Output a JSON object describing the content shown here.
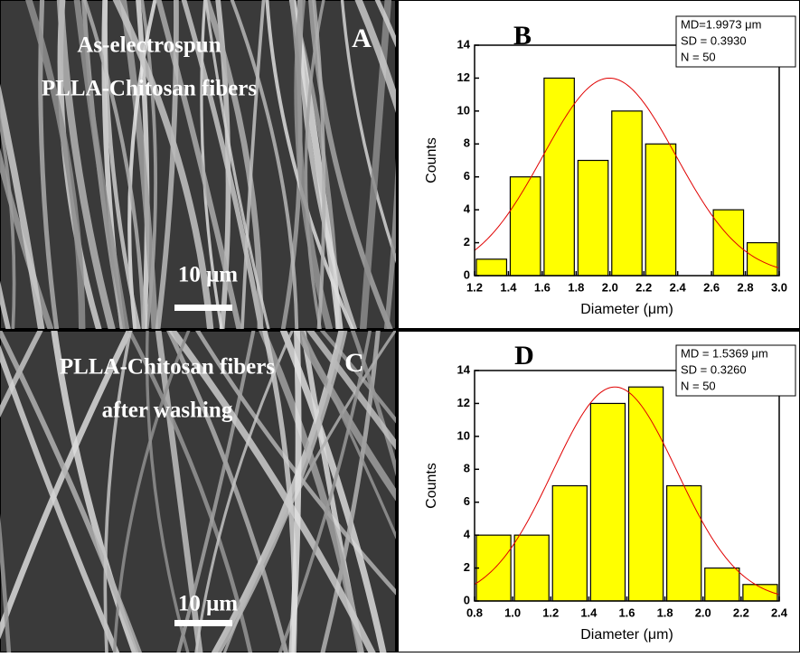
{
  "images": [
    {
      "label": "A",
      "caption": [
        "As-electrospun",
        "PLLA-Chitosan fibers"
      ],
      "scale_bar": "10 μm"
    },
    {
      "label": "C",
      "caption": [
        "PLLA-Chitosan fibers",
        "after washing"
      ],
      "scale_bar": "10 μm"
    }
  ],
  "chart_data": [
    {
      "type": "histogram",
      "title": "B",
      "x_label": "Diameter (μm)",
      "y_label": "Counts",
      "bins": [
        1.2,
        1.4,
        1.6,
        1.8,
        2.0,
        2.2,
        2.4,
        2.6,
        2.8,
        3.0
      ],
      "values": [
        1,
        6,
        12,
        7,
        10,
        8,
        0,
        4,
        2
      ],
      "color": "#ffff00",
      "curve_color": "#e00000",
      "fit": {
        "mean": 1.9973,
        "sd": 0.393,
        "peak": 12
      },
      "stats": [
        "MD=1.9973 μm",
        "SD = 0.3930",
        "N = 50"
      ],
      "xlim": [
        1.2,
        3.0
      ],
      "xticks": [
        1.2,
        1.4,
        1.6,
        1.8,
        {
          "value": 2,
          "label": "2.0"
        },
        2.2,
        2.4,
        2.6,
        2.8,
        {
          "value": 3,
          "label": "3.0"
        }
      ],
      "ylim": [
        0,
        14
      ],
      "yticks": [
        0,
        2,
        4,
        6,
        8,
        10,
        12,
        14
      ]
    },
    {
      "type": "histogram",
      "title": "D",
      "x_label": "Diameter (μm)",
      "y_label": "Counts",
      "bins": [
        0.8,
        1.0,
        1.2,
        1.4,
        1.6,
        1.8,
        2.0,
        2.2,
        2.4
      ],
      "values": [
        4,
        4,
        7,
        12,
        13,
        7,
        2,
        1
      ],
      "color": "#ffff00",
      "curve_color": "#e00000",
      "fit": {
        "mean": 1.5369,
        "sd": 0.326,
        "peak": 13
      },
      "stats": [
        "MD = 1.5369  μm",
        "SD =  0.3260",
        "N = 50"
      ],
      "xlim": [
        0.8,
        2.4
      ],
      "xticks": [
        0.8,
        {
          "value": 1,
          "label": "1.0"
        },
        1.2,
        1.4,
        1.6,
        1.8,
        {
          "value": 2,
          "label": "2.0"
        },
        2.2,
        2.4
      ],
      "ylim": [
        0,
        14
      ],
      "yticks": [
        0,
        2,
        4,
        6,
        8,
        10,
        12,
        14
      ]
    }
  ]
}
